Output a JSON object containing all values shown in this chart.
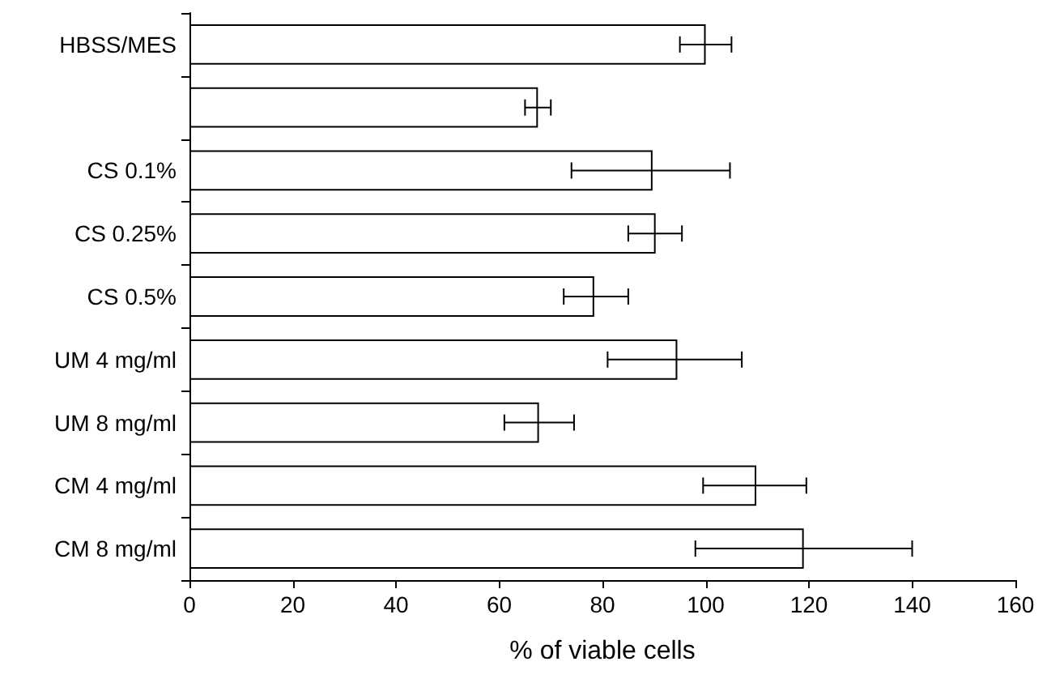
{
  "chart_data": {
    "type": "bar",
    "orientation": "horizontal",
    "xlabel": "% of viable cells",
    "categories": [
      "HBSS/MES",
      null,
      "CS 0.1%",
      "CS 0.25%",
      "CS 0.5%",
      "UM 4 mg/ml",
      "UM 8 mg/ml",
      "CM 4 mg/ml",
      "CM 8 mg/ml"
    ],
    "values": [
      100,
      67.5,
      89.7,
      90.3,
      78.4,
      94.5,
      67.7,
      109.8,
      119
    ],
    "errors": [
      [
        95,
        105
      ],
      [
        65,
        70
      ],
      [
        74,
        104.7
      ],
      [
        85,
        95.4
      ],
      [
        72.5,
        85
      ],
      [
        81,
        107
      ],
      [
        61,
        74.5
      ],
      [
        99.5,
        119.5
      ],
      [
        98,
        140
      ]
    ],
    "color": "#ffffff",
    "xlim": [
      0,
      160
    ],
    "xticks": [
      0,
      20,
      40,
      60,
      80,
      100,
      120,
      140,
      160
    ]
  }
}
